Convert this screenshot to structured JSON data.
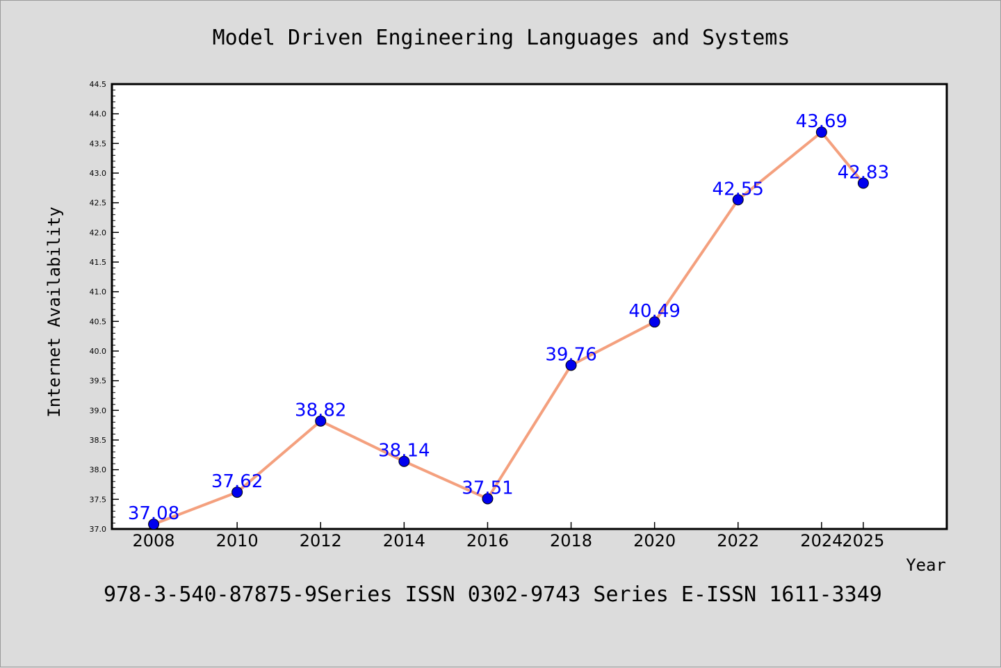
{
  "chart_data": {
    "type": "line",
    "title": "Model Driven Engineering Languages and Systems",
    "xlabel": "Year",
    "ylabel": "Internet Availability",
    "footer": "978-3-540-87875-9Series ISSN 0302-9743 Series E-ISSN 1611-3349",
    "categories": [
      "2008",
      "2010",
      "2012",
      "2014",
      "2016",
      "2018",
      "2020",
      "2022",
      "2024",
      "2025"
    ],
    "values": [
      37.08,
      37.62,
      38.82,
      38.14,
      37.51,
      39.76,
      40.49,
      42.55,
      43.69,
      42.83
    ],
    "value_labels": [
      "37.08",
      "37.62",
      "38.82",
      "38.14",
      "37.51",
      "39.76",
      "40.49",
      "42.55",
      "43.69",
      "42.83"
    ],
    "ylim": [
      37.0,
      44.5
    ],
    "yticks": [
      "37.0",
      "37.5",
      "38.0",
      "38.5",
      "39.0",
      "39.5",
      "40.0",
      "40.5",
      "41.0",
      "41.5",
      "42.0",
      "42.5",
      "43.0",
      "43.5",
      "44.0",
      "44.5"
    ],
    "grid": false,
    "legend": "none",
    "colors": {
      "line": "#f4a07e",
      "marker": "#0000ee",
      "label": "#0000ff",
      "background": "#dcdcdc",
      "plot_background": "#ffffff"
    }
  }
}
